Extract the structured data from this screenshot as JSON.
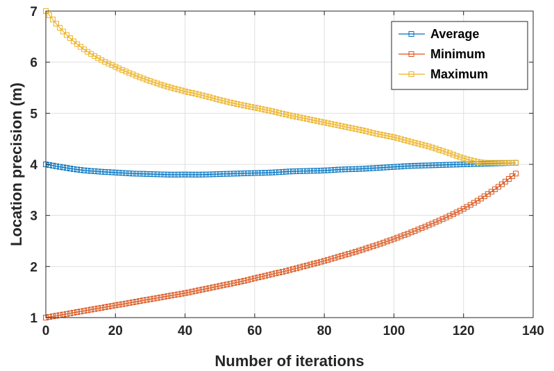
{
  "chart_data": {
    "type": "line",
    "title": "",
    "xlabel": "Number of iterations",
    "ylabel": "Location precision (m)",
    "xlim": [
      0,
      140
    ],
    "ylim": [
      1,
      7
    ],
    "xticks": [
      0,
      20,
      40,
      60,
      80,
      100,
      120,
      140
    ],
    "yticks": [
      1,
      2,
      3,
      4,
      5,
      6,
      7
    ],
    "grid": true,
    "legend_position": "top-right",
    "marker": "square",
    "x": [
      0,
      5,
      10,
      15,
      20,
      25,
      30,
      35,
      40,
      45,
      50,
      55,
      60,
      65,
      70,
      75,
      80,
      85,
      90,
      95,
      100,
      105,
      110,
      115,
      120,
      125,
      130,
      135
    ],
    "series": [
      {
        "name": "Average",
        "color": "#0072BD",
        "values": [
          4.0,
          3.94,
          3.89,
          3.86,
          3.84,
          3.82,
          3.81,
          3.8,
          3.8,
          3.8,
          3.81,
          3.82,
          3.83,
          3.84,
          3.86,
          3.87,
          3.88,
          3.9,
          3.91,
          3.93,
          3.95,
          3.97,
          3.98,
          3.99,
          4.0,
          4.01,
          4.02,
          4.03
        ]
      },
      {
        "name": "Minimum",
        "color": "#D95319",
        "values": [
          1.0,
          1.06,
          1.12,
          1.18,
          1.24,
          1.3,
          1.36,
          1.42,
          1.48,
          1.55,
          1.62,
          1.69,
          1.77,
          1.85,
          1.93,
          2.02,
          2.11,
          2.21,
          2.31,
          2.42,
          2.54,
          2.67,
          2.81,
          2.96,
          3.13,
          3.33,
          3.56,
          3.82
        ]
      },
      {
        "name": "Maximum",
        "color": "#EDB120",
        "values": [
          7.0,
          6.6,
          6.3,
          6.08,
          5.91,
          5.76,
          5.63,
          5.52,
          5.43,
          5.35,
          5.26,
          5.18,
          5.11,
          5.04,
          4.96,
          4.89,
          4.82,
          4.75,
          4.68,
          4.6,
          4.53,
          4.44,
          4.35,
          4.24,
          4.12,
          4.04,
          4.03,
          4.03
        ]
      }
    ]
  }
}
